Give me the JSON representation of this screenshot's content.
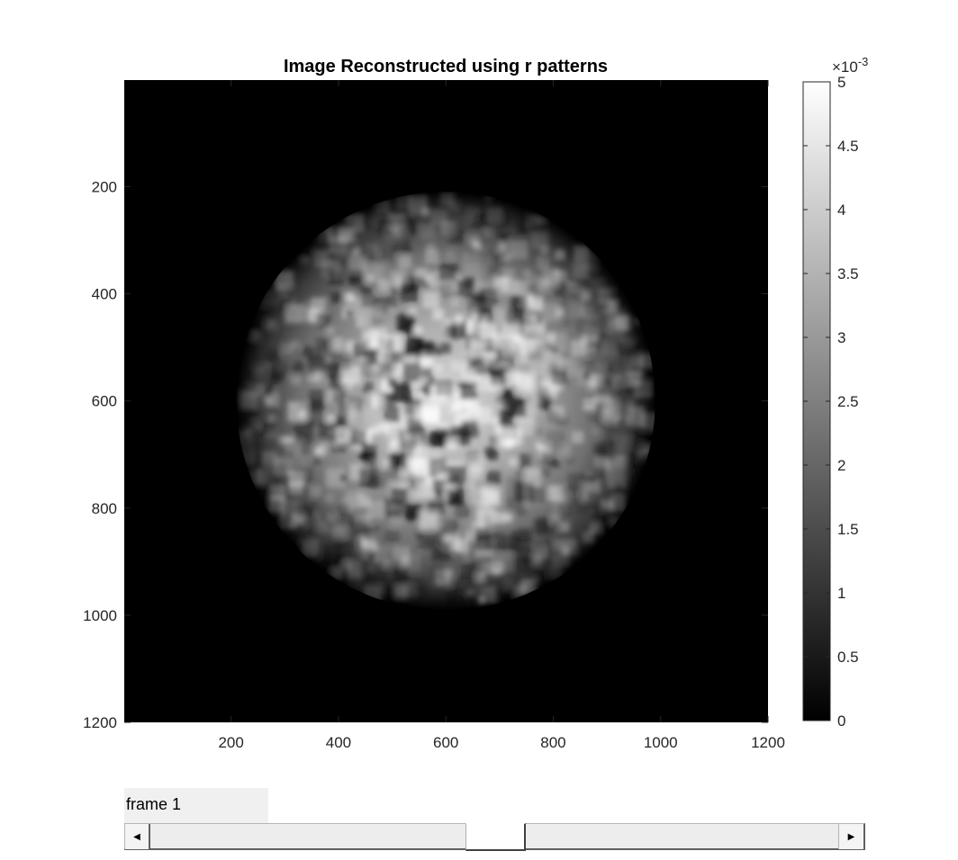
{
  "figure": {
    "title": "Image Reconstructed using r patterns"
  },
  "chart_data": [
    {
      "type": "heatmap",
      "title": "Image Reconstructed using r patterns",
      "xlabel": "",
      "ylabel": "",
      "xlim": [
        1,
        1200
      ],
      "ylim": [
        1200,
        1
      ],
      "y_reversed": true,
      "xticks": [
        200,
        400,
        600,
        800,
        1000,
        1200
      ],
      "yticks": [
        200,
        400,
        600,
        800,
        1000,
        1200
      ],
      "xtick_labels": [
        "200",
        "400",
        "600",
        "800",
        "1000",
        "1200"
      ],
      "ytick_labels": [
        "200",
        "400",
        "600",
        "800",
        "1000",
        "1200"
      ],
      "colormap": "gray",
      "content": {
        "shape": "disc",
        "center": [
          600,
          600
        ],
        "radius": 390,
        "texture": "blocky speckle",
        "peak_value": 0.005,
        "background_value": 0
      }
    },
    {
      "type": "colorbar",
      "range": [
        0,
        0.005
      ],
      "ticks": [
        0,
        0.0005,
        0.001,
        0.0015,
        0.002,
        0.0025,
        0.003,
        0.0035,
        0.004,
        0.0045,
        0.005
      ],
      "tick_labels": [
        "0",
        "0.5",
        "1",
        "1.5",
        "2",
        "2.5",
        "3",
        "3.5",
        "4",
        "4.5",
        "5"
      ],
      "exponent_base": "×10",
      "exponent_power": "-3"
    }
  ],
  "controls": {
    "frame_label": "frame 1",
    "slider_value": 1,
    "slider_position_fraction": 0.5,
    "left_arrow": "◀",
    "right_arrow": "▶"
  },
  "colors": {
    "background": "#ffffff",
    "axes_background": "#000000",
    "panel": "#f0f0f0"
  }
}
